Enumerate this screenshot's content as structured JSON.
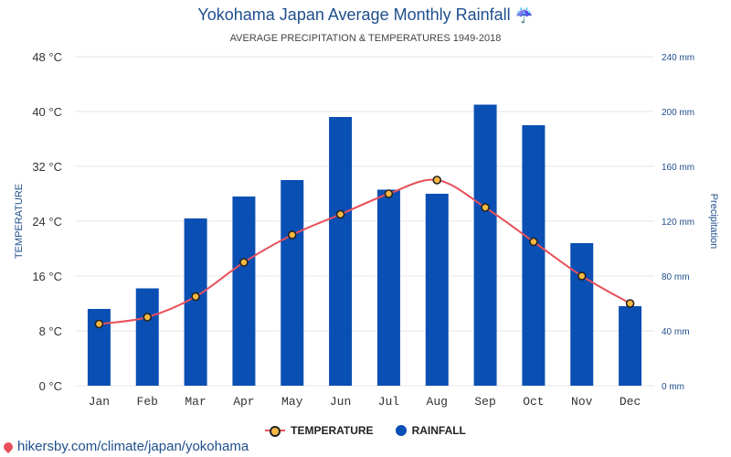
{
  "header": {
    "title": "Yokohama Japan Average Monthly Rainfall",
    "title_icon": "umbrella-icon",
    "subtitle": "AVERAGE PRECIPITATION & TEMPERATURES 1949-2018"
  },
  "legend": {
    "temperature": "TEMPERATURE",
    "rainfall": "RAINFALL"
  },
  "footer": {
    "link": "hikersby.com/climate/japan/yokohama",
    "icon": "location-pin-icon"
  },
  "colors": {
    "bar": "#0a4fb3",
    "line": "#e8505b",
    "marker_fill": "#f5b942",
    "axis_right_text": "#1f4e8c",
    "grid": "#e6e6e6"
  },
  "chart_data": {
    "type": "bar",
    "categories": [
      "Jan",
      "Feb",
      "Mar",
      "Apr",
      "May",
      "Jun",
      "Jul",
      "Aug",
      "Sep",
      "Oct",
      "Nov",
      "Dec"
    ],
    "series": [
      {
        "name": "RAINFALL",
        "type": "bar",
        "axis": "right",
        "values": [
          56,
          71,
          122,
          138,
          150,
          196,
          143,
          140,
          205,
          190,
          104,
          58
        ]
      },
      {
        "name": "TEMPERATURE",
        "type": "line",
        "axis": "left",
        "values": [
          9,
          10,
          13,
          18,
          22,
          25,
          28,
          30,
          26,
          21,
          16,
          12
        ]
      }
    ],
    "ylabel_left": "TEMPERATURE",
    "ylabel_right": "Precipitation",
    "ylim_left": [
      0,
      48
    ],
    "ylim_right": [
      0,
      240
    ],
    "left_ticks": [
      "0 °C",
      "8 °C",
      "16 °C",
      "24 °C",
      "32 °C",
      "40 °C",
      "48 °C"
    ],
    "right_ticks": [
      "0 mm",
      "40 mm",
      "80 mm",
      "120 mm",
      "160 mm",
      "200 mm",
      "240 mm"
    ],
    "grid": true,
    "legend_position": "bottom"
  }
}
